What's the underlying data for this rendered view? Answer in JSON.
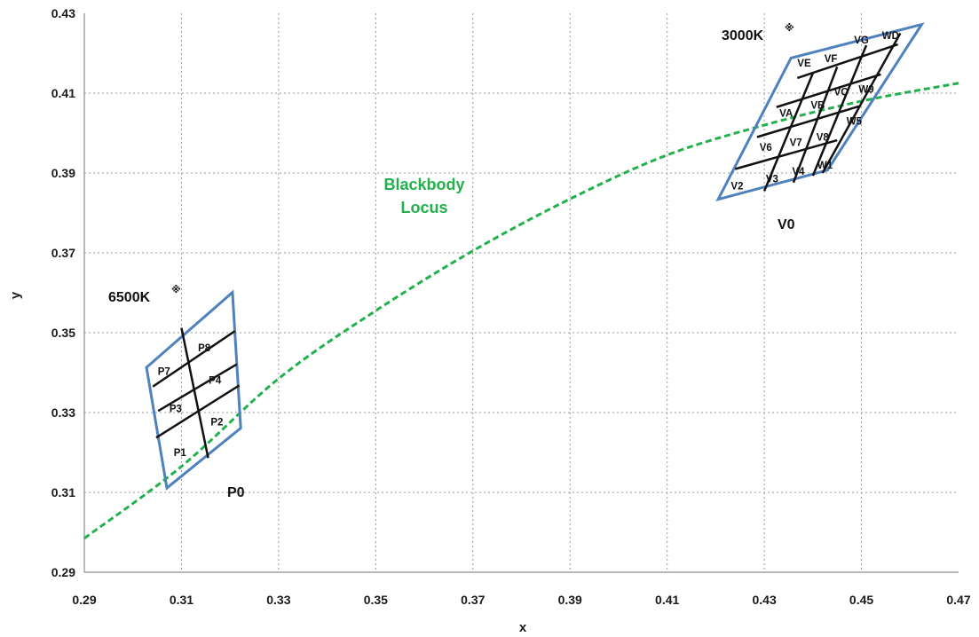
{
  "chart_data": {
    "type": "scatter",
    "title": "",
    "xlabel": "x",
    "ylabel": "y",
    "xlim": [
      0.29,
      0.47
    ],
    "ylim": [
      0.29,
      0.43
    ],
    "x_ticks": [
      "0.29",
      "0.31",
      "0.33",
      "0.35",
      "0.37",
      "0.39",
      "0.41",
      "0.43",
      "0.45",
      "0.47"
    ],
    "y_ticks": [
      "0.29",
      "0.31",
      "0.33",
      "0.35",
      "0.37",
      "0.39",
      "0.41",
      "0.43"
    ],
    "grid": true,
    "colors": {
      "locus": "#22b14c",
      "boundary": "#4f81bd",
      "grid_line": "#111111",
      "gridline": "#9a9a9a"
    },
    "blackbody_locus": {
      "label_lines": [
        "Blackbody",
        "Locus"
      ],
      "x": [
        0.29,
        0.31,
        0.33,
        0.35,
        0.37,
        0.39,
        0.41,
        0.43,
        0.45,
        0.47
      ],
      "y": [
        0.2985,
        0.3165,
        0.3385,
        0.3555,
        0.3705,
        0.3835,
        0.3945,
        0.402,
        0.408,
        0.4125
      ]
    },
    "groups": [
      {
        "cct_label": "6500K",
        "star": "※",
        "region_label": "P0",
        "boundary": [
          [
            0.307,
            0.3111
          ],
          [
            0.3222,
            0.3261
          ],
          [
            0.3205,
            0.3601
          ],
          [
            0.3028,
            0.3413
          ]
        ],
        "grid_lines": [
          [
            [
              0.31,
              0.3512
            ],
            [
              0.3155,
              0.3186
            ]
          ],
          [
            [
              0.3052,
              0.3304
            ],
            [
              0.3214,
              0.3421
            ]
          ],
          [
            [
              0.3041,
              0.3365
            ],
            [
              0.321,
              0.3504
            ]
          ],
          [
            [
              0.3048,
              0.3237
            ],
            [
              0.3219,
              0.3368
            ]
          ]
        ],
        "cells": [
          {
            "label": "P8",
            "x": 0.3147,
            "y": 0.3462
          },
          {
            "label": "P7",
            "x": 0.3064,
            "y": 0.3403
          },
          {
            "label": "P4",
            "x": 0.3169,
            "y": 0.3381
          },
          {
            "label": "P3",
            "x": 0.3088,
            "y": 0.331
          },
          {
            "label": "P2",
            "x": 0.3173,
            "y": 0.3277
          },
          {
            "label": "P1",
            "x": 0.3097,
            "y": 0.32
          }
        ]
      },
      {
        "cct_label": "3000K",
        "star": "※",
        "region_label": "V0",
        "boundary": [
          [
            0.4205,
            0.3834
          ],
          [
            0.443,
            0.3907
          ],
          [
            0.4624,
            0.4272
          ],
          [
            0.4355,
            0.4188
          ]
        ],
        "grid_lines": [
          [
            [
              0.424,
              0.391
            ],
            [
              0.445,
              0.3982
            ]
          ],
          [
            [
              0.4285,
              0.399
            ],
            [
              0.4495,
              0.4067
            ]
          ],
          [
            [
              0.4325,
              0.4065
            ],
            [
              0.454,
              0.4147
            ]
          ],
          [
            [
              0.4368,
              0.4138
            ],
            [
              0.4575,
              0.4222
            ]
          ],
          [
            [
              0.43,
              0.3855
            ],
            [
              0.44,
              0.415
            ]
          ],
          [
            [
              0.436,
              0.3876
            ],
            [
              0.445,
              0.4166
            ]
          ],
          [
            [
              0.44,
              0.3893
            ],
            [
              0.451,
              0.422
            ]
          ],
          [
            [
              0.442,
              0.39
            ],
            [
              0.458,
              0.425
            ]
          ]
        ],
        "cells": [
          {
            "label": "WD",
            "x": 0.456,
            "y": 0.4245
          },
          {
            "label": "VG",
            "x": 0.45,
            "y": 0.4233
          },
          {
            "label": "VF",
            "x": 0.4437,
            "y": 0.4187
          },
          {
            "label": "VE",
            "x": 0.4382,
            "y": 0.4176
          },
          {
            "label": "W9",
            "x": 0.451,
            "y": 0.411
          },
          {
            "label": "VC",
            "x": 0.4458,
            "y": 0.4103
          },
          {
            "label": "VB",
            "x": 0.441,
            "y": 0.407
          },
          {
            "label": "VA",
            "x": 0.4345,
            "y": 0.405
          },
          {
            "label": "W5",
            "x": 0.4485,
            "y": 0.403
          },
          {
            "label": "V8",
            "x": 0.442,
            "y": 0.399
          },
          {
            "label": "V7",
            "x": 0.4365,
            "y": 0.3977
          },
          {
            "label": "V6",
            "x": 0.4303,
            "y": 0.3964
          },
          {
            "label": "W1",
            "x": 0.4425,
            "y": 0.392
          },
          {
            "label": "V4",
            "x": 0.437,
            "y": 0.3905
          },
          {
            "label": "V3",
            "x": 0.4316,
            "y": 0.3886
          },
          {
            "label": "V2",
            "x": 0.4244,
            "y": 0.3868
          }
        ]
      }
    ]
  }
}
